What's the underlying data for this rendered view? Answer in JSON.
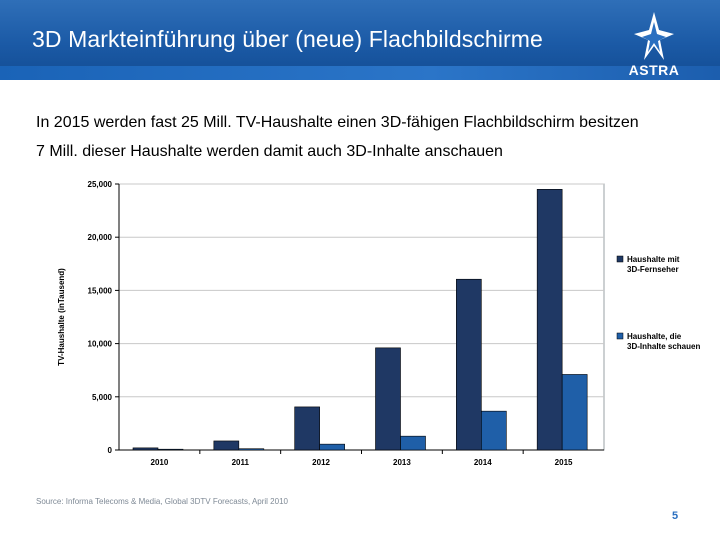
{
  "header": {
    "title": "3D Markteinführung über (neue) Flachbildschirme",
    "logo_text": "ASTRA",
    "logo_icon": "astra-star-icon",
    "colors": {
      "header_blue": "#1b5aa6",
      "accent_blue": "#2a6fc0"
    }
  },
  "subtitles": {
    "line1": "In 2015 werden fast 25 Mill. TV-Haushalte einen 3D-fähigen Flachbildschirm besitzen",
    "line2": "7 Mill. dieser Haushalte werden damit auch 3D-Inhalte anschauen"
  },
  "chart_data": {
    "type": "bar",
    "categories": [
      "2010",
      "2011",
      "2012",
      "2013",
      "2014",
      "2015"
    ],
    "series": [
      {
        "name": "Haushalte mit 3D-Fernseher",
        "legend_lines": [
          "Haushalte mit",
          "3D-Fernseher"
        ],
        "color": "#1f3864",
        "values": [
          200,
          850,
          4050,
          9600,
          16050,
          24500
        ]
      },
      {
        "name": "Haushalte, die 3D-Inhalte schauen",
        "legend_lines": [
          "Haushalte, die",
          "3D-Inhalte schauen"
        ],
        "color": "#1f5fa8",
        "values": [
          20,
          120,
          550,
          1300,
          3650,
          7100
        ]
      }
    ],
    "ylabel": "TV-Haushalte (inTausend)",
    "xlabel": "",
    "ylim": [
      0,
      25000
    ],
    "yticks": [
      0,
      5000,
      10000,
      15000,
      20000,
      25000
    ],
    "ytick_labels": [
      "0",
      "5,000",
      "10,000",
      "15,000",
      "20,000",
      "25,000"
    ],
    "grid": "horizontal",
    "legend_position": "right"
  },
  "footer": {
    "source": "Source: Informa Telecoms & Media, Global 3DTV Forecasts, April 2010",
    "page_number": "5"
  }
}
